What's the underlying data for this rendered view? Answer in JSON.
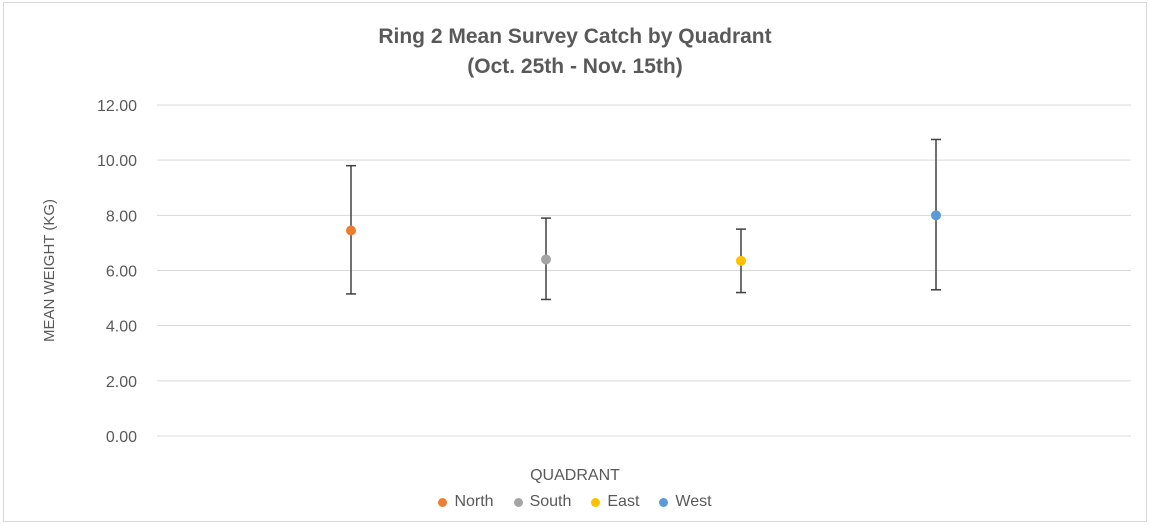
{
  "chart_data": {
    "type": "scatter",
    "title": "Ring 2 Mean Survey Catch by Quadrant",
    "subtitle": "(Oct. 25th - Nov. 15th)",
    "xlabel": "QUADRANT",
    "ylabel": "MEAN WEIGHT (KG)",
    "ylim": [
      0,
      12
    ],
    "yticks": [
      "0.00",
      "2.00",
      "4.00",
      "6.00",
      "8.00",
      "10.00",
      "12.00"
    ],
    "grid": true,
    "legend_position": "bottom",
    "series": [
      {
        "name": "North",
        "color": "#ed7d31",
        "y": 7.45,
        "err_low": 5.15,
        "err_high": 9.8
      },
      {
        "name": "South",
        "color": "#a5a5a5",
        "y": 6.4,
        "err_low": 4.95,
        "err_high": 7.9
      },
      {
        "name": "East",
        "color": "#ffc000",
        "y": 6.35,
        "err_low": 5.2,
        "err_high": 7.5
      },
      {
        "name": "West",
        "color": "#5b9bd5",
        "y": 8.0,
        "err_low": 5.3,
        "err_high": 10.75
      }
    ]
  }
}
